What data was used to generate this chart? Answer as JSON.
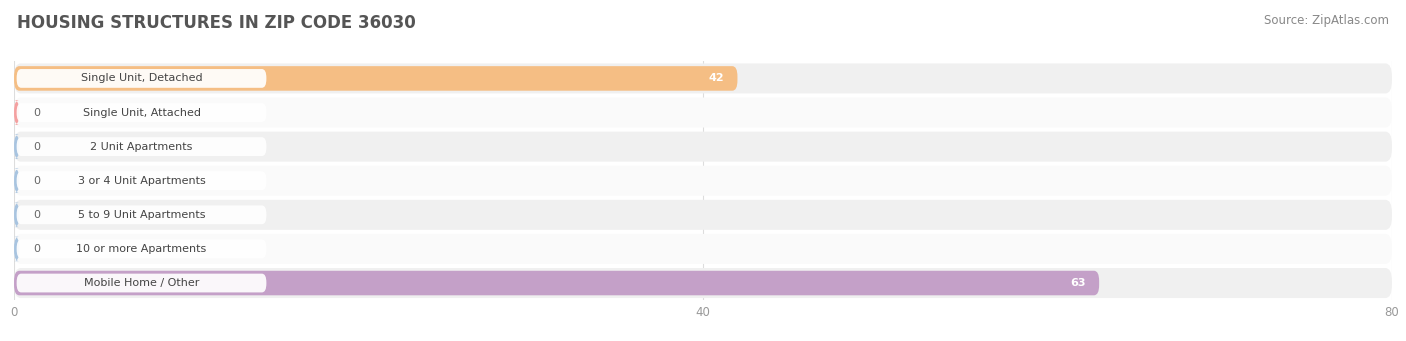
{
  "title": "HOUSING STRUCTURES IN ZIP CODE 36030",
  "source": "Source: ZipAtlas.com",
  "categories": [
    "Single Unit, Detached",
    "Single Unit, Attached",
    "2 Unit Apartments",
    "3 or 4 Unit Apartments",
    "5 to 9 Unit Apartments",
    "10 or more Apartments",
    "Mobile Home / Other"
  ],
  "values": [
    42,
    0,
    0,
    0,
    0,
    0,
    63
  ],
  "bar_colors": [
    "#f5be84",
    "#f4a0a0",
    "#a8c4e0",
    "#a8c4e0",
    "#a8c4e0",
    "#a8c4e0",
    "#c4a0c8"
  ],
  "row_bg_even": "#f0f0f0",
  "row_bg_odd": "#fafafa",
  "xlim": [
    0,
    80
  ],
  "xticks": [
    0,
    40,
    80
  ],
  "background_color": "#ffffff",
  "title_fontsize": 12,
  "source_fontsize": 8.5,
  "label_fontsize": 8,
  "value_fontsize": 8,
  "value_inside_color": "#ffffff",
  "value_outside_color": "#666666",
  "label_text_color": "#444444",
  "grid_color": "#dddddd",
  "title_color": "#555555",
  "source_color": "#888888"
}
